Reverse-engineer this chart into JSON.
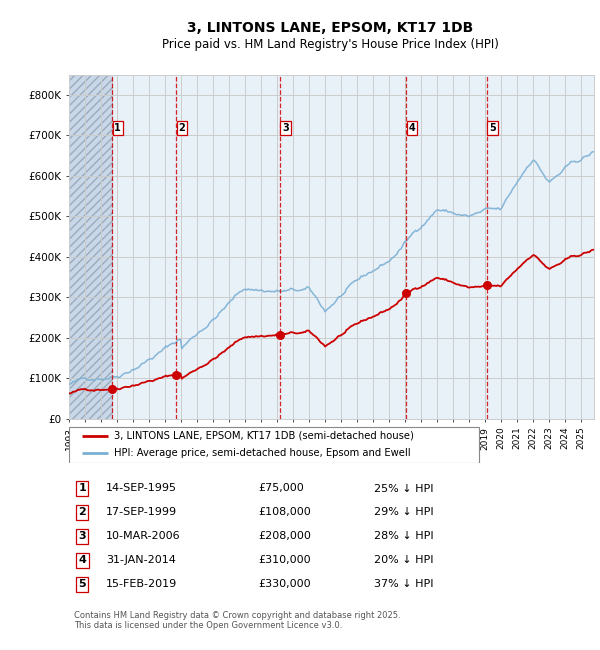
{
  "title_line1": "3, LINTONS LANE, EPSOM, KT17 1DB",
  "title_line2": "Price paid vs. HM Land Registry's House Price Index (HPI)",
  "ylim": [
    0,
    850000
  ],
  "yticks": [
    0,
    100000,
    200000,
    300000,
    400000,
    500000,
    600000,
    700000,
    800000
  ],
  "ytick_labels": [
    "£0",
    "£100K",
    "£200K",
    "£300K",
    "£400K",
    "£500K",
    "£600K",
    "£700K",
    "£800K"
  ],
  "xlim_start": 1993.0,
  "xlim_end": 2025.8,
  "xtick_years": [
    1993,
    1994,
    1995,
    1996,
    1997,
    1998,
    1999,
    2000,
    2001,
    2002,
    2003,
    2004,
    2005,
    2006,
    2007,
    2008,
    2009,
    2010,
    2011,
    2012,
    2013,
    2014,
    2015,
    2016,
    2017,
    2018,
    2019,
    2020,
    2021,
    2022,
    2023,
    2024,
    2025
  ],
  "hatch_end_year": 1995.75,
  "sale_dates": [
    1995.708,
    1999.708,
    2006.19,
    2014.083,
    2019.125
  ],
  "sale_prices": [
    75000,
    108000,
    208000,
    310000,
    330000
  ],
  "sale_labels": [
    "1",
    "2",
    "3",
    "4",
    "5"
  ],
  "sale_label_dates_str": [
    "14-SEP-1995",
    "17-SEP-1999",
    "10-MAR-2006",
    "31-JAN-2014",
    "15-FEB-2019"
  ],
  "sale_prices_str": [
    "£75,000",
    "£108,000",
    "£208,000",
    "£310,000",
    "£330,000"
  ],
  "sale_hpi_pct": [
    "25% ↓ HPI",
    "29% ↓ HPI",
    "28% ↓ HPI",
    "20% ↓ HPI",
    "37% ↓ HPI"
  ],
  "property_line_color": "#cc0000",
  "hpi_line_color": "#7ab0d4",
  "dashed_line_color": "#cc0000",
  "dot_color": "#cc0000",
  "legend_label_property": "3, LINTONS LANE, EPSOM, KT17 1DB (semi-detached house)",
  "legend_label_hpi": "HPI: Average price, semi-detached house, Epsom and Ewell",
  "footer_text": "Contains HM Land Registry data © Crown copyright and database right 2025.\nThis data is licensed under the Open Government Licence v3.0.",
  "grid_color": "#cccccc",
  "hatch_color": "#c8d8e8",
  "plot_bg": "#e8f0f8"
}
